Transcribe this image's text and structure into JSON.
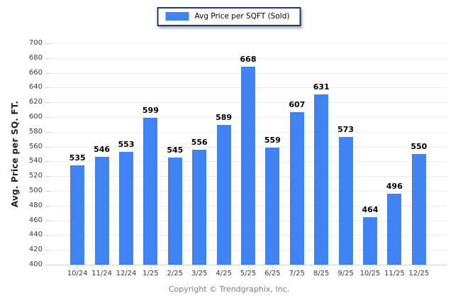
{
  "chart_data": {
    "type": "bar",
    "title": "",
    "legend": "Avg Price per SQFT (Sold)",
    "legend_position": "top-center",
    "ylabel": "Avg. Price per SQ. FT.",
    "xlabel": "",
    "categories": [
      "10/24",
      "11/24",
      "12/24",
      "1/25",
      "2/25",
      "3/25",
      "4/25",
      "5/25",
      "6/25",
      "7/25",
      "8/25",
      "9/25",
      "10/25",
      "11/25",
      "12/25"
    ],
    "values": [
      535,
      546,
      553,
      599,
      545,
      556,
      589,
      668,
      559,
      607,
      631,
      573,
      464,
      496,
      550
    ],
    "ylim": [
      400,
      700
    ],
    "ytick_step": 20,
    "grid": "horizontal",
    "bar_color": "#4183f2"
  },
  "colors": {
    "accent": "#4183f2",
    "legend_border": "#1e3a68",
    "gridline": "#ececec",
    "axis_line": "#d2d2d2",
    "tick_label": "#3a3a3a",
    "value_label": "#000000",
    "footer_text": "#7d7d7d"
  },
  "footer": {
    "copyright": "Copyright © Trendgraphix, Inc."
  }
}
